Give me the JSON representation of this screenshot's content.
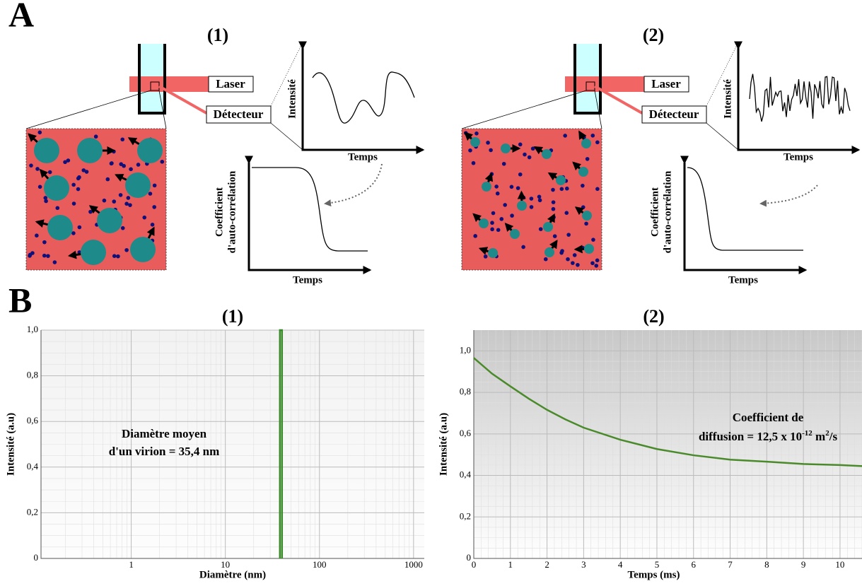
{
  "panel_labels": [
    "A",
    "B"
  ],
  "diagrams": [
    {
      "title": "(1)",
      "laser": "Laser",
      "detector": "Détecteur",
      "intensity_axis": "Intensité",
      "time_axis": "Temps",
      "acf_axis": [
        "Coefficient",
        "d'auto-corrélation"
      ],
      "acf_time_axis": "Temps"
    },
    {
      "title": "(2)",
      "laser": "Laser",
      "detector": "Détecteur",
      "intensity_axis": "Intensité",
      "time_axis": "Temps",
      "acf_axis": [
        "Coefficient",
        "d'auto-corrélation"
      ],
      "acf_time_axis": "Temps"
    }
  ],
  "chart_data": [
    {
      "type": "line",
      "title": "(1)",
      "x_label": "Diamètre (nm)",
      "y_label": "Intensité (a.u)",
      "x_scale": "log",
      "grid": true,
      "xlim": [
        0.11,
        1300
      ],
      "ylim": [
        0,
        1
      ],
      "xticks": [
        1,
        10,
        100,
        1000
      ],
      "yticks": [
        0,
        {
          "value": 0.2,
          "label": "0,2"
        },
        {
          "value": 0.4,
          "label": "0,4"
        },
        {
          "value": 0.6,
          "label": "0,6"
        },
        {
          "value": 0.8,
          "label": "0,8"
        },
        {
          "value": 1,
          "label": "1,0"
        }
      ],
      "annotation": [
        "Diamètre moyen",
        "d'un virion = 35,4 nm"
      ],
      "series": [
        {
          "color": "#3a8a2a",
          "x": [
            38,
            38,
            40,
            40
          ],
          "values": [
            0,
            1,
            1,
            0
          ]
        }
      ]
    },
    {
      "type": "line",
      "title": "(2)",
      "x_label": "Temps (ms)",
      "y_label": "Intensité (a.u)",
      "x_scale": "linear",
      "grid": true,
      "xlim": [
        0,
        10.6
      ],
      "ylim": [
        0,
        1.1
      ],
      "xticks": [
        0,
        1,
        2,
        3,
        4,
        5,
        6,
        7,
        8,
        9,
        10
      ],
      "yticks": [
        0,
        {
          "value": 0.2,
          "label": "0,2"
        },
        {
          "value": 0.4,
          "label": "0,4"
        },
        {
          "value": 0.6,
          "label": "0,6"
        },
        {
          "value": 0.8,
          "label": "0,8"
        },
        {
          "value": 1,
          "label": "1,0"
        }
      ],
      "annotation": [
        "Coefficient de",
        "diffusion = 12,5 x 10",
        "-12",
        " m",
        "2",
        "/s"
      ],
      "series": [
        {
          "color": "#4a8a2a",
          "x": [
            0,
            0.5,
            1,
            1.5,
            2,
            2.5,
            3,
            4,
            5,
            6,
            7,
            8,
            9,
            10,
            10.6
          ],
          "values": [
            0.966,
            0.89,
            0.829,
            0.77,
            0.716,
            0.67,
            0.63,
            0.572,
            0.527,
            0.497,
            0.476,
            0.466,
            0.455,
            0.45,
            0.445
          ]
        }
      ]
    }
  ]
}
